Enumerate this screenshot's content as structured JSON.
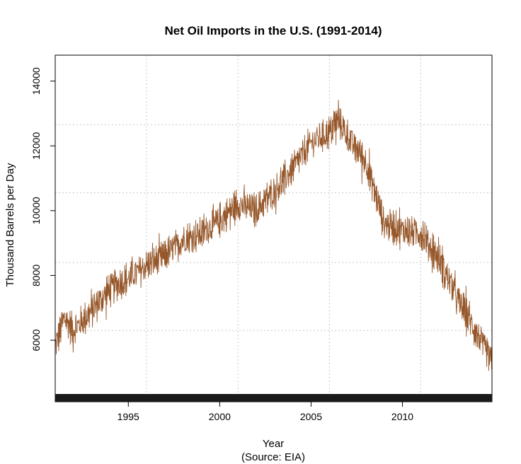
{
  "chart_data": {
    "type": "line",
    "title": "Net Oil Imports in the U.S. (1991-2014)",
    "xlabel": "Year",
    "xlabel_note": "(Source: EIA)",
    "ylabel": "Thousand Barrels per Day",
    "xlim": [
      1991.0,
      2014.9
    ],
    "ylim": [
      4100,
      14800
    ],
    "x_ticks": [
      1995,
      2000,
      2005,
      2010
    ],
    "y_ticks": [
      6000,
      8000,
      10000,
      12000,
      14000
    ],
    "grid": true,
    "grid_x": [
      1996,
      2001,
      2006,
      2011
    ],
    "grid_y": [
      6300,
      8400,
      10550,
      12650
    ],
    "frequency": "weekly",
    "line_color": "#8B4513",
    "series": [
      {
        "x_start": 1991.0,
        "x_end": 2014.9,
        "anchors_x": [
          1991.0,
          1991.5,
          1992.0,
          1993.0,
          1994.0,
          1995.0,
          1996.0,
          1997.0,
          1998.0,
          1999.0,
          2000.0,
          2001.0,
          2002.0,
          2003.0,
          2004.0,
          2005.0,
          2006.0,
          2006.5,
          2007.0,
          2008.0,
          2009.0,
          2010.0,
          2011.0,
          2012.0,
          2013.0,
          2014.0,
          2014.9
        ],
        "anchors_y": [
          5800,
          6700,
          6300,
          6900,
          7600,
          7900,
          8300,
          8600,
          9100,
          9300,
          9700,
          10200,
          10000,
          10600,
          11300,
          12100,
          12400,
          12800,
          12300,
          11500,
          9600,
          9400,
          9300,
          8500,
          7300,
          6300,
          5300
        ],
        "noise_amplitude": 850
      }
    ],
    "rug_band": true
  }
}
